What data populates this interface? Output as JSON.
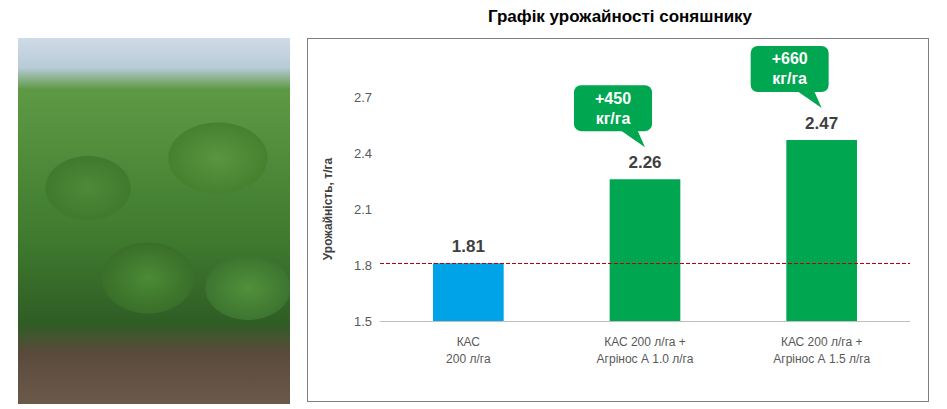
{
  "chart_data": {
    "type": "bar",
    "title": "Графік урожайності соняшнику",
    "y_label": "Урожайність, т/га",
    "categories": [
      "КАС\n200 л/га",
      "КАС 200 л/га +\nАгрінос А 1.0 л/га",
      "КАС 200 л/га +\nАгрінос А 1.5 л/га"
    ],
    "values": [
      1.81,
      2.26,
      2.47
    ],
    "colors": [
      "#00a2e8",
      "#00a650",
      "#00a650"
    ],
    "ylim": [
      1.5,
      2.7
    ],
    "yticks": [
      1.5,
      1.8,
      2.1,
      2.4,
      2.7
    ],
    "reference_line": 1.81,
    "annotations": [
      {
        "category": "КАС 200 л/га +\nАгрінос А 1.0 л/га",
        "text": "+450\nкг/га"
      },
      {
        "category": "КАС 200 л/га +\nАгрінос А 1.5 л/га",
        "text": "+660\nкг/га"
      }
    ],
    "grid": false,
    "data_labels": true
  }
}
